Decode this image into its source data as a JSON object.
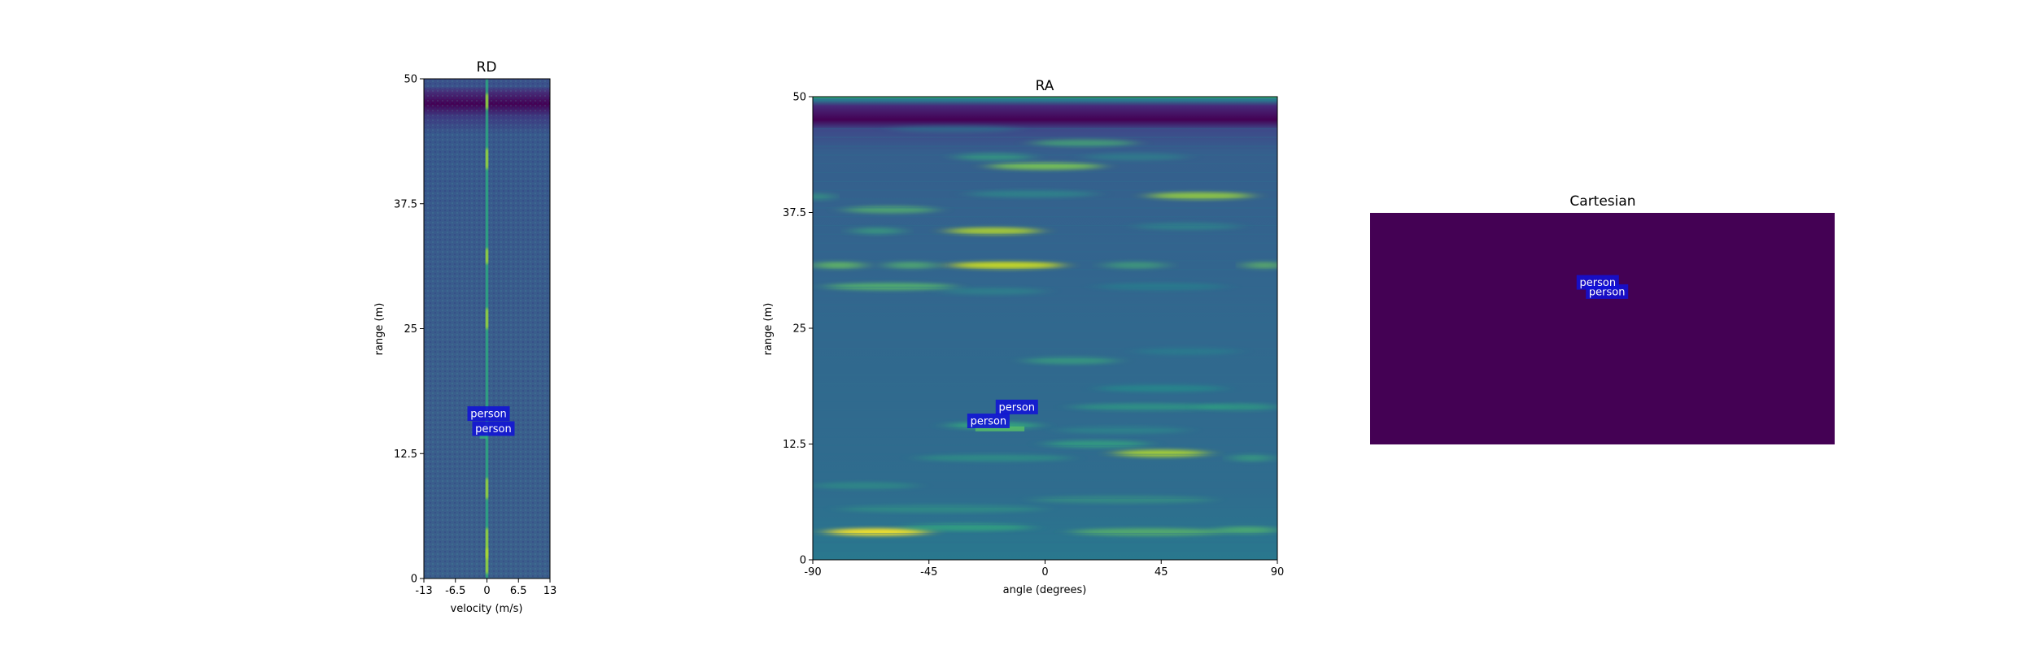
{
  "chart_data": [
    {
      "type": "heatmap",
      "title": "RD",
      "xlabel": "velocity (m/s)",
      "ylabel": "range (m)",
      "xlim": [
        -13,
        13
      ],
      "ylim": [
        0,
        50
      ],
      "xticks": [
        -13,
        -6.5,
        0,
        6.5,
        13
      ],
      "xtick_labels": [
        "-13",
        "-6.5",
        "0",
        "6.5",
        "13"
      ],
      "yticks": [
        0,
        12.5,
        25,
        37.5,
        50
      ],
      "ytick_labels": [
        "0",
        "12.5",
        "25",
        "37.5",
        "50"
      ],
      "colormap": "viridis",
      "annotations": [
        {
          "label": "person",
          "x": 0,
          "y": 16.5
        },
        {
          "label": "person",
          "x": 1,
          "y": 15.0
        }
      ]
    },
    {
      "type": "heatmap",
      "title": "RA",
      "xlabel": "angle (degrees)",
      "ylabel": "range (m)",
      "xlim": [
        -90,
        90
      ],
      "ylim": [
        0,
        50
      ],
      "xticks": [
        -90,
        -45,
        0,
        45,
        90
      ],
      "xtick_labels": [
        "-90",
        "-45",
        "0",
        "45",
        "90"
      ],
      "yticks": [
        0,
        12.5,
        25,
        37.5,
        50
      ],
      "ytick_labels": [
        "0",
        "12.5",
        "25",
        "37.5",
        "50"
      ],
      "colormap": "viridis",
      "annotations": [
        {
          "label": "person",
          "x": -10,
          "y": 16.5
        },
        {
          "label": "person",
          "x": -21,
          "y": 15.0
        }
      ]
    },
    {
      "type": "heatmap",
      "title": "Cartesian",
      "colormap": "viridis",
      "background_color": "#440154",
      "annotations": [
        {
          "label": "person",
          "x": 0.51,
          "y": 0.66
        },
        {
          "label": "person",
          "x": 0.49,
          "y": 0.7
        }
      ]
    }
  ],
  "colors": {
    "annotation_box": "#1010d8",
    "viridis_low": "#440154",
    "viridis_mid": "#21908d",
    "viridis_high": "#fde725"
  }
}
